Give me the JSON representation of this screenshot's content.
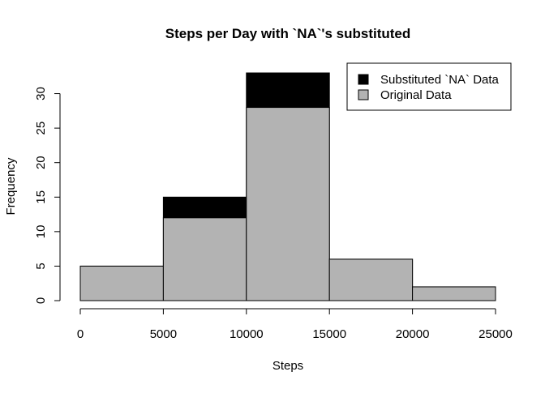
{
  "chart_data": {
    "type": "bar",
    "title": "Steps per Day with `NA`'s substituted",
    "xlabel": "Steps",
    "ylabel": "Frequency",
    "bins": [
      {
        "from": 0,
        "to": 5000
      },
      {
        "from": 5000,
        "to": 10000
      },
      {
        "from": 10000,
        "to": 15000
      },
      {
        "from": 15000,
        "to": 20000
      },
      {
        "from": 20000,
        "to": 25000
      }
    ],
    "series": [
      {
        "name": "Substituted `NA` Data",
        "color": "#000000",
        "values": [
          5,
          15,
          33,
          6,
          2
        ]
      },
      {
        "name": "Original Data",
        "color": "#b3b3b3",
        "values": [
          5,
          12,
          28,
          6,
          2
        ]
      }
    ],
    "xlim": [
      0,
      25000
    ],
    "ylim": [
      0,
      33
    ],
    "xticks": [
      "0",
      "5000",
      "10000",
      "15000",
      "20000",
      "25000"
    ],
    "xtick_values": [
      0,
      5000,
      10000,
      15000,
      20000,
      25000
    ],
    "yticks": [
      "0",
      "5",
      "10",
      "15",
      "20",
      "25",
      "30"
    ],
    "ytick_values": [
      0,
      5,
      10,
      15,
      20,
      25,
      30
    ],
    "legend": {
      "position": "top-right"
    },
    "grid": false
  }
}
